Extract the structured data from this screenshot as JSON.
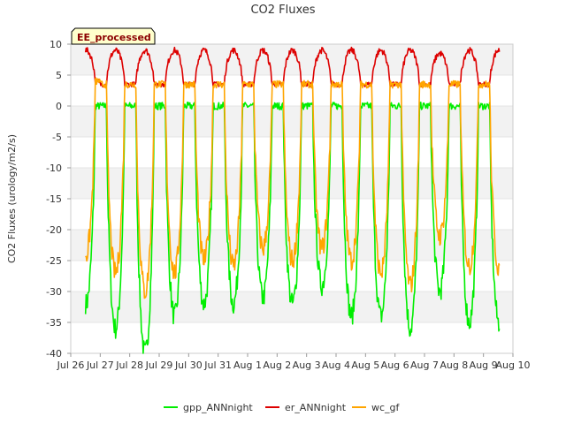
{
  "chart_data": {
    "type": "line",
    "title": "CO2 Fluxes",
    "ylabel": "CO2 Fluxes (urology/m2/s)",
    "xlabel": "",
    "badge": "EE_processed",
    "ylim": [
      -40,
      10
    ],
    "yticks": [
      10,
      5,
      0,
      -5,
      -10,
      -15,
      -20,
      -25,
      -30,
      -35,
      -40
    ],
    "xlim": [
      0,
      15
    ],
    "xticks": [
      {
        "value": 0,
        "label": "Jul 26"
      },
      {
        "value": 1,
        "label": "Jul 27"
      },
      {
        "value": 2,
        "label": "Jul 28"
      },
      {
        "value": 3,
        "label": "Jul 29"
      },
      {
        "value": 4,
        "label": "Jul 30"
      },
      {
        "value": 5,
        "label": "Jul 31"
      },
      {
        "value": 6,
        "label": "Aug 1"
      },
      {
        "value": 7,
        "label": "Aug 2"
      },
      {
        "value": 8,
        "label": "Aug 3"
      },
      {
        "value": 9,
        "label": "Aug 4"
      },
      {
        "value": 10,
        "label": "Aug 5"
      },
      {
        "value": 11,
        "label": "Aug 6"
      },
      {
        "value": 12,
        "label": "Aug 7"
      },
      {
        "value": 13,
        "label": "Aug 8"
      },
      {
        "value": 14,
        "label": "Aug 9"
      },
      {
        "value": 15,
        "label": "Aug 10"
      }
    ],
    "grid": "horizontal bands",
    "legend_position": "bottom",
    "series": [
      {
        "name": "gpp_ANNnight",
        "color": "#00ee00",
        "daily": [
          {
            "day": 0.5,
            "min": -32,
            "night": 0
          },
          {
            "day": 1.5,
            "min": -36,
            "night": 0
          },
          {
            "day": 2.5,
            "min": -40,
            "night": 0
          },
          {
            "day": 3.5,
            "min": -34,
            "night": 0
          },
          {
            "day": 4.5,
            "min": -32,
            "night": 0
          },
          {
            "day": 5.5,
            "min": -32,
            "night": 0
          },
          {
            "day": 6.5,
            "min": -31,
            "night": 0
          },
          {
            "day": 7.5,
            "min": -32,
            "night": 0
          },
          {
            "day": 8.5,
            "min": -29,
            "night": 0
          },
          {
            "day": 9.5,
            "min": -34,
            "night": 0
          },
          {
            "day": 10.5,
            "min": -34,
            "night": 0
          },
          {
            "day": 11.5,
            "min": -36,
            "night": 0
          },
          {
            "day": 12.5,
            "min": -30,
            "night": 0
          },
          {
            "day": 13.5,
            "min": -35,
            "night": 0
          }
        ]
      },
      {
        "name": "er_ANNnight",
        "color": "#dd0000",
        "daily": [
          {
            "day": 0.5,
            "max": 9,
            "night": 4
          },
          {
            "day": 1.5,
            "max": 9,
            "night": 3.5
          },
          {
            "day": 2.5,
            "max": 9,
            "night": 3.5
          },
          {
            "day": 3.5,
            "max": 9,
            "night": 3.5
          },
          {
            "day": 4.5,
            "max": 9,
            "night": 3.5
          },
          {
            "day": 5.5,
            "max": 9,
            "night": 3.5
          },
          {
            "day": 6.5,
            "max": 9,
            "night": 3.5
          },
          {
            "day": 7.5,
            "max": 9,
            "night": 3.5
          },
          {
            "day": 8.5,
            "max": 9,
            "night": 3.5
          },
          {
            "day": 9.5,
            "max": 9,
            "night": 3.5
          },
          {
            "day": 10.5,
            "max": 9,
            "night": 3.5
          },
          {
            "day": 11.5,
            "max": 9,
            "night": 3.5
          },
          {
            "day": 12.5,
            "max": 8.5,
            "night": 3.5
          },
          {
            "day": 13.5,
            "max": 9,
            "night": 3.5
          }
        ]
      },
      {
        "name": "wc_gf",
        "color": "#ffa500",
        "daily": [
          {
            "day": 0.5,
            "min": -24,
            "night": 4
          },
          {
            "day": 1.5,
            "min": -27,
            "night": 3.5
          },
          {
            "day": 2.5,
            "min": -30,
            "night": 3.5
          },
          {
            "day": 3.5,
            "min": -27,
            "night": 3.5
          },
          {
            "day": 4.5,
            "min": -25,
            "night": 3.5
          },
          {
            "day": 5.5,
            "min": -26,
            "night": 3.5
          },
          {
            "day": 6.5,
            "min": -23,
            "night": 3.5
          },
          {
            "day": 7.5,
            "min": -25,
            "night": 3.5
          },
          {
            "day": 8.5,
            "min": -23,
            "night": 3.5
          },
          {
            "day": 9.5,
            "min": -25,
            "night": 3.5
          },
          {
            "day": 10.5,
            "min": -27,
            "night": 3.5
          },
          {
            "day": 11.5,
            "min": -29,
            "night": 3.5
          },
          {
            "day": 12.5,
            "min": -21,
            "night": 3.5
          },
          {
            "day": 13.5,
            "min": -26,
            "night": 3.5
          }
        ]
      }
    ]
  }
}
